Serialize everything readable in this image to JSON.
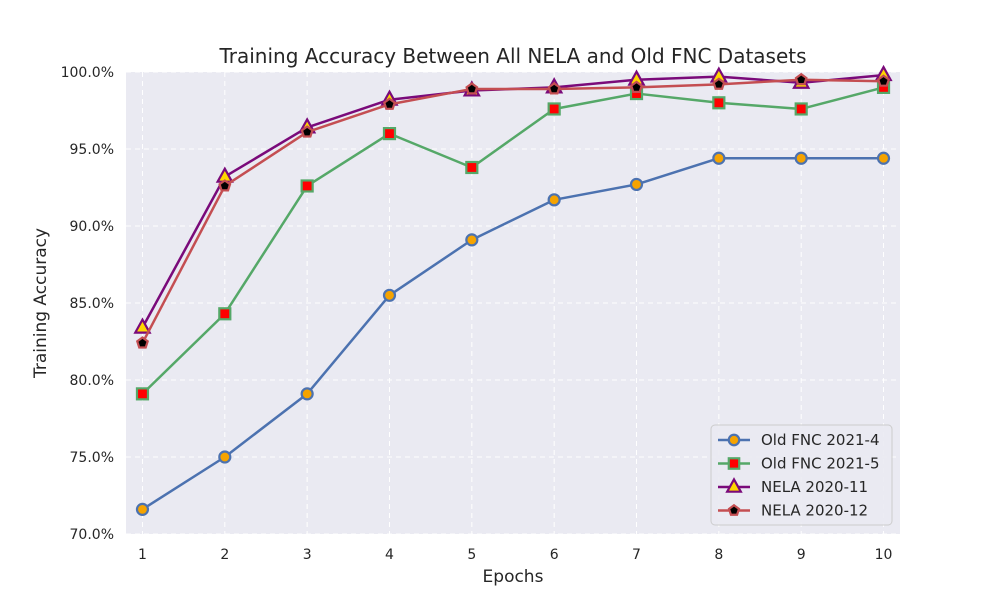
{
  "chart_data": {
    "type": "line",
    "title": "Training Accuracy Between All NELA and Old FNC Datasets",
    "xlabel": "Epochs",
    "ylabel": "Training Accuracy",
    "x": [
      1,
      2,
      3,
      4,
      5,
      6,
      7,
      8,
      9,
      10
    ],
    "x_tick_labels": [
      "1",
      "2",
      "3",
      "4",
      "5",
      "6",
      "7",
      "8",
      "9",
      "10"
    ],
    "xlim": [
      0.8,
      10.2
    ],
    "ylim": [
      70.0,
      100.0
    ],
    "y_ticks": [
      70,
      75,
      80,
      85,
      90,
      95,
      100
    ],
    "y_tick_labels": [
      "70.0%",
      "75.0%",
      "80.0%",
      "85.0%",
      "90.0%",
      "95.0%",
      "100.0%"
    ],
    "grid": true,
    "legend_position": "lower-right",
    "background_color": "#eaeaf2",
    "series": [
      {
        "name": "Old FNC 2021-4",
        "values": [
          71.6,
          75.0,
          79.1,
          85.5,
          89.1,
          91.7,
          92.7,
          94.4,
          94.4,
          94.4
        ],
        "line_color": "#4c72b0",
        "marker": "circle",
        "marker_face": "#f5a300",
        "marker_edge": "#4c72b0"
      },
      {
        "name": "Old FNC 2021-5",
        "values": [
          79.1,
          84.3,
          92.6,
          96.0,
          93.8,
          97.6,
          98.6,
          98.0,
          97.6,
          99.0
        ],
        "line_color": "#55a868",
        "marker": "square",
        "marker_face": "#ff0000",
        "marker_edge": "#55a868"
      },
      {
        "name": "NELA 2020-11",
        "values": [
          83.4,
          93.2,
          96.4,
          98.2,
          98.8,
          99.0,
          99.5,
          99.7,
          99.3,
          99.8
        ],
        "line_color": "#7a0a7a",
        "marker": "triangle",
        "marker_face": "#ffd700",
        "marker_edge": "#7a0a7a"
      },
      {
        "name": "NELA 2020-12",
        "values": [
          82.4,
          92.6,
          96.1,
          97.9,
          98.9,
          98.9,
          99.0,
          99.2,
          99.5,
          99.4
        ],
        "line_color": "#c44e52",
        "marker": "pentagon",
        "marker_face": "#000000",
        "marker_edge": "#c44e52"
      }
    ]
  }
}
